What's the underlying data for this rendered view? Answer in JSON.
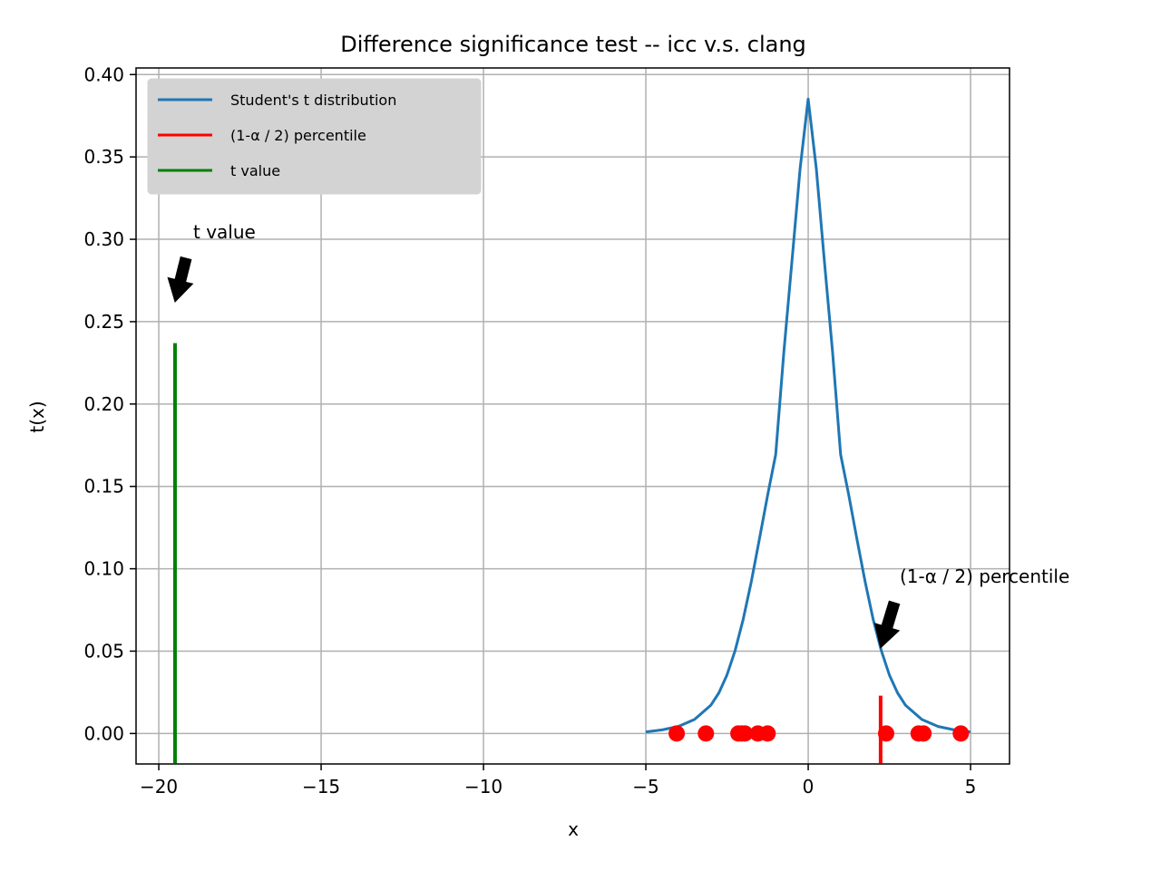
{
  "chart_data": {
    "type": "line",
    "title": "Difference significance test -- icc v.s. clang",
    "xlabel": "x",
    "ylabel": "t(x)",
    "xlim": [
      -20.7,
      6.2
    ],
    "ylim": [
      -0.0185,
      0.404
    ],
    "x_ticks": [
      -20,
      -15,
      -10,
      -5,
      0,
      5
    ],
    "x_tick_labels": [
      "−20",
      "−15",
      "−10",
      "−5",
      "0",
      "5"
    ],
    "y_ticks": [
      0.0,
      0.05,
      0.1,
      0.15,
      0.2,
      0.25,
      0.3,
      0.35,
      0.4
    ],
    "y_tick_labels": [
      "0.00",
      "0.05",
      "0.10",
      "0.15",
      "0.20",
      "0.25",
      "0.30",
      "0.35",
      "0.40"
    ],
    "grid": true,
    "legend_position": "top-left",
    "series": [
      {
        "name": "Student's t distribution",
        "kind": "line",
        "color": "#1f77b4",
        "x": [
          -5.0,
          -4.5,
          -4.0,
          -3.5,
          -3.0,
          -2.75,
          -2.5,
          -2.25,
          -2.0,
          -1.75,
          -1.5,
          -1.25,
          -1.0,
          -0.75,
          -0.5,
          -0.25,
          0.0,
          0.25,
          0.5,
          0.75,
          1.0,
          1.25,
          1.5,
          1.75,
          2.0,
          2.25,
          2.5,
          2.75,
          3.0,
          3.5,
          4.0,
          4.5,
          5.0
        ],
        "y": [
          0.001,
          0.0022,
          0.0043,
          0.0085,
          0.0171,
          0.0247,
          0.0356,
          0.0504,
          0.0694,
          0.0924,
          0.1182,
          0.1446,
          0.1693,
          0.2316,
          0.2866,
          0.3428,
          0.3852,
          0.3428,
          0.2866,
          0.2316,
          0.1693,
          0.1446,
          0.1182,
          0.0924,
          0.0694,
          0.0504,
          0.0356,
          0.0247,
          0.0171,
          0.0085,
          0.0043,
          0.0022,
          0.001
        ]
      },
      {
        "name": "(1-α / 2) percentile",
        "kind": "vline",
        "color": "#ff0000",
        "x": 2.23,
        "y_range": [
          -0.018,
          0.023
        ]
      },
      {
        "name": "t value",
        "kind": "vline",
        "color": "#008000",
        "x": -19.5,
        "y_range": [
          -0.018,
          0.237
        ]
      }
    ],
    "points": {
      "color": "#ff0000",
      "x": [
        -4.05,
        -3.15,
        -2.15,
        -2.05,
        -1.95,
        -1.55,
        -1.25,
        2.4,
        3.4,
        3.55,
        4.7
      ],
      "y": [
        0,
        0,
        0,
        0,
        0,
        0,
        0,
        0,
        0,
        0,
        0
      ]
    },
    "annotations": [
      {
        "text": "t value",
        "arrow_tip": [
          -19.5,
          0.262
        ],
        "arrow_color": "#000000"
      },
      {
        "text": "(1-α / 2) percentile",
        "arrow_tip": [
          2.23,
          0.052
        ],
        "arrow_color": "#000000"
      }
    ]
  }
}
